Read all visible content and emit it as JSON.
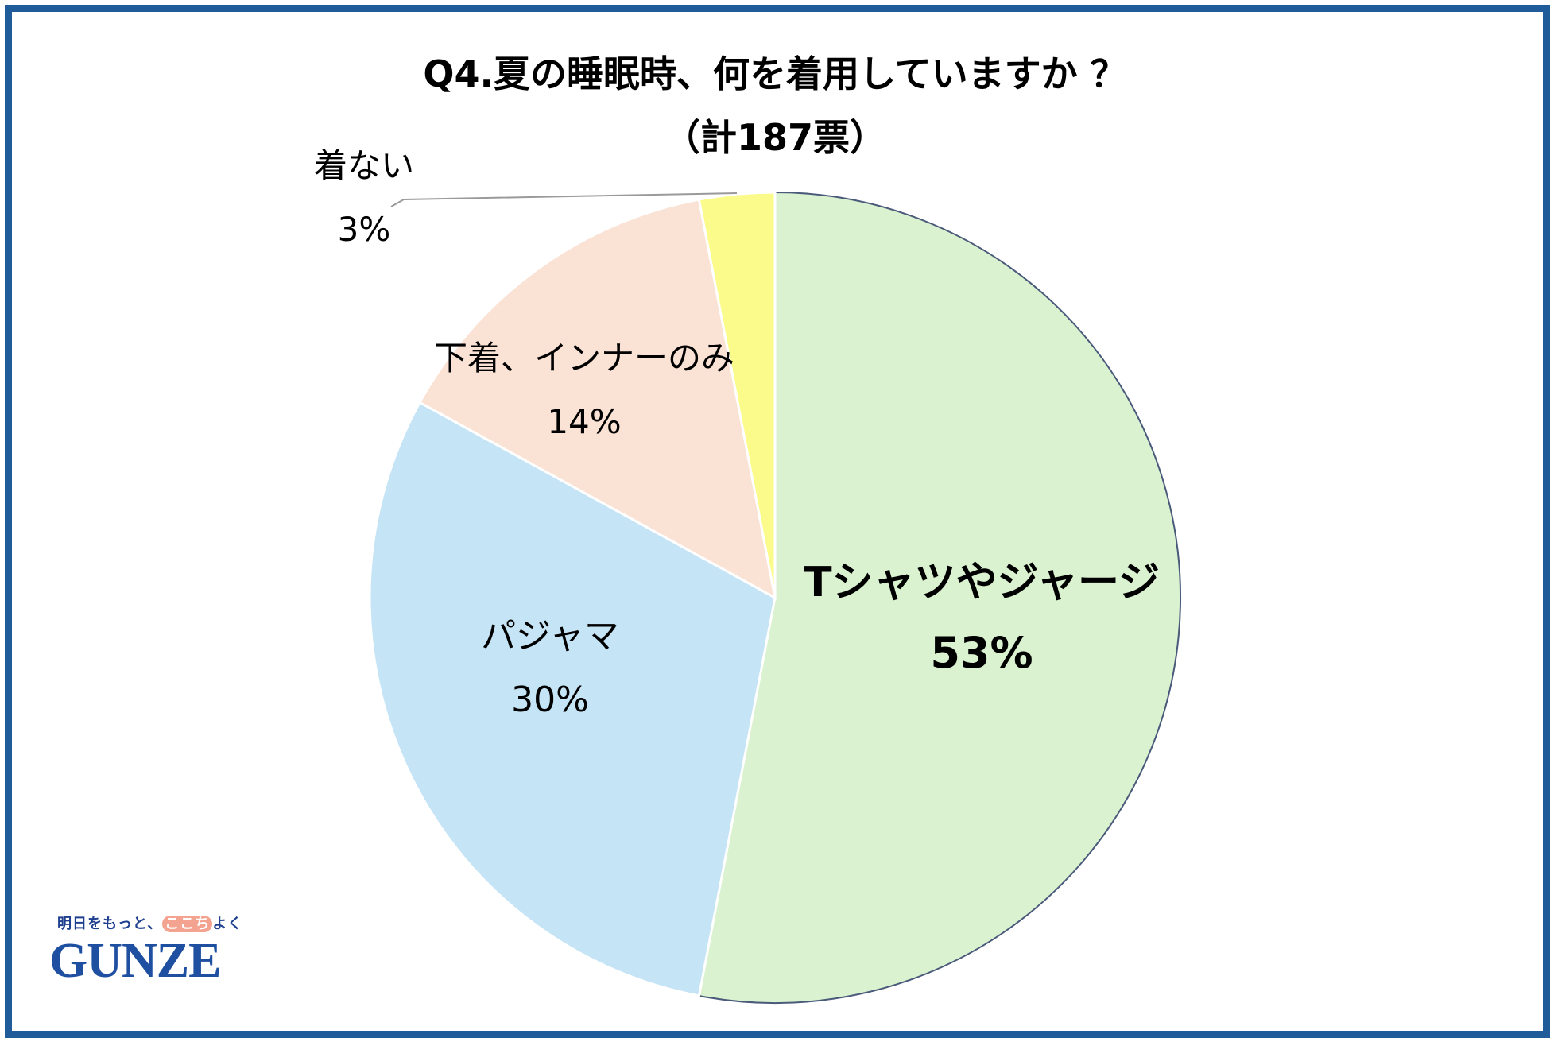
{
  "title": "Q4.夏の睡眠時、何を着用していますか ？",
  "subtitle": "（計187票）",
  "logo": {
    "tagline_pre": "明日をもっと、",
    "tagline_highlight": "ここち",
    "tagline_post": "よく",
    "wordmark": "GUNZE"
  },
  "colors": {
    "frame": "#1f5c99",
    "tshirt": "#daf2d0",
    "pajama": "#c5e4f5",
    "underwear": "#fae2d5",
    "none": "#fbfb8c"
  },
  "chart_data": {
    "type": "pie",
    "title": "Q4.夏の睡眠時、何を着用していますか ？",
    "subtitle": "（計187票）",
    "start": "12 o'clock",
    "direction": "clockwise",
    "slices": [
      {
        "label": "Tシャツやジャージ",
        "value": 53,
        "value_label": "53%",
        "color": "#daf2d0",
        "emphasis": true
      },
      {
        "label": "パジャマ",
        "value": 30,
        "value_label": "30%",
        "color": "#c5e4f5",
        "emphasis": false
      },
      {
        "label": "下着、インナーのみ",
        "value": 14,
        "value_label": "14%",
        "color": "#fae2d5",
        "emphasis": false
      },
      {
        "label": "着ない",
        "value": 3,
        "value_label": "3%",
        "color": "#fbfb8c",
        "emphasis": false
      }
    ]
  }
}
